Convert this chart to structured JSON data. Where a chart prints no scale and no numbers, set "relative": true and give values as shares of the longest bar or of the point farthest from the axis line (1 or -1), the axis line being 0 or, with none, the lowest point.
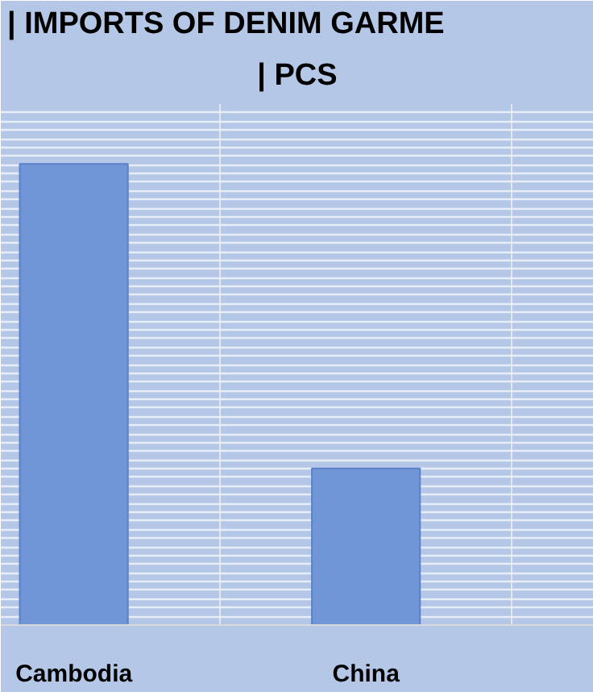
{
  "chart_data": {
    "type": "bar",
    "title": "| IMPORTS OF DENIM GARME",
    "subtitle": "| PCS",
    "categories": [
      "Cambodia",
      "China",
      null
    ],
    "values": [
      1,
      0.34,
      null
    ],
    "color": "#7096d8",
    "relative": true,
    "grid": true
  }
}
